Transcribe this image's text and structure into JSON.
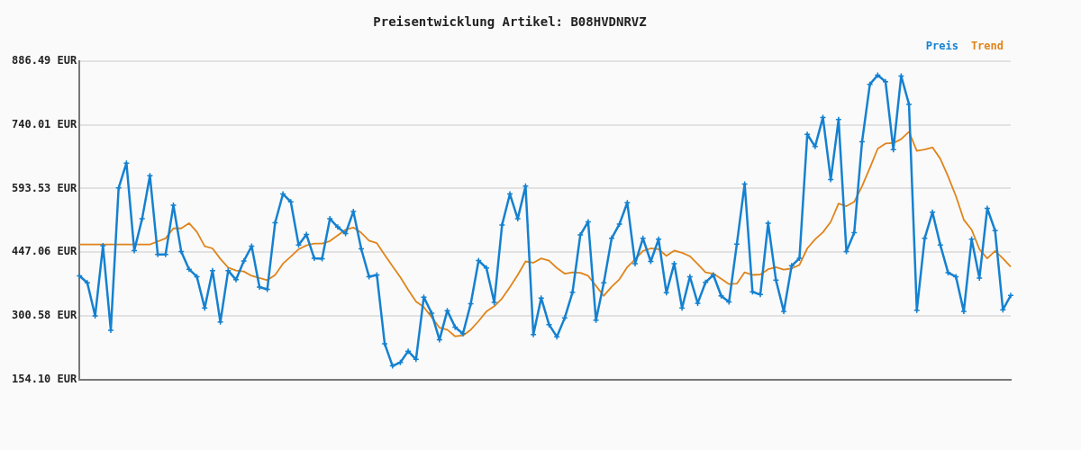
{
  "chart_data": {
    "type": "line",
    "title": "Preisentwicklung Artikel: B08HVDNRVZ",
    "categories": [
      null,
      null,
      null,
      null,
      null,
      null,
      null,
      null,
      null,
      null,
      null,
      null,
      null,
      null,
      null,
      null,
      null,
      null,
      null,
      null,
      null,
      null,
      null,
      null,
      null,
      null,
      null,
      null,
      null,
      null,
      null,
      null,
      null,
      null,
      null,
      null,
      null,
      null,
      null,
      null,
      null,
      null,
      null,
      null,
      null,
      null,
      null,
      null,
      null,
      null,
      null,
      null,
      null,
      null,
      null,
      null,
      null,
      null,
      null,
      null,
      null,
      null,
      null,
      null,
      null,
      null,
      null,
      null,
      null,
      null,
      null,
      null,
      null,
      null,
      null,
      null,
      null,
      null,
      null,
      null,
      null,
      null,
      null,
      null,
      null,
      null,
      null,
      null,
      null,
      null,
      null,
      null,
      null,
      null,
      null,
      null,
      null,
      null,
      null,
      null,
      null,
      null,
      null,
      null,
      null,
      null,
      null,
      null,
      null,
      null,
      null,
      null,
      null,
      null,
      null,
      null,
      null,
      null,
      null,
      null
    ],
    "series": [
      {
        "name": "Preis",
        "color": "#1581d0",
        "values": [
          393,
          377,
          301,
          462,
          268,
          595,
          652,
          451,
          524,
          623,
          442,
          442,
          555,
          449,
          408,
          391,
          319,
          405,
          287,
          405,
          384,
          427,
          461,
          367,
          362,
          515,
          581,
          563,
          464,
          488,
          433,
          432,
          524,
          505,
          490,
          541,
          455,
          391,
          395,
          237,
          186,
          194,
          220,
          201,
          344,
          307,
          246,
          313,
          275,
          260,
          329,
          428,
          411,
          332,
          510,
          581,
          524,
          599,
          258,
          342,
          281,
          253,
          296,
          355,
          487,
          517,
          291,
          377,
          479,
          512,
          561,
          421,
          479,
          426,
          477,
          354,
          421,
          319,
          391,
          330,
          378,
          395,
          347,
          333,
          466,
          604,
          356,
          350,
          514,
          383,
          311,
          416,
          433,
          718,
          690,
          757,
          614,
          752,
          449,
          492,
          701,
          833,
          854,
          839,
          683,
          852,
          787,
          314,
          479,
          539,
          464,
          400,
          391,
          311,
          477,
          388,
          548,
          497,
          315,
          348
        ]
      },
      {
        "name": "Trend",
        "color": "#e0841a",
        "marker": "none",
        "values": [
          465,
          465,
          465,
          465,
          465,
          465,
          465,
          465,
          465,
          465,
          472,
          479,
          502,
          502,
          514,
          494,
          461,
          456,
          432,
          412,
          405,
          403,
          393,
          388,
          383,
          395,
          421,
          437,
          454,
          463,
          467,
          467,
          473,
          486,
          499,
          504,
          492,
          474,
          468,
          441,
          415,
          390,
          361,
          334,
          321,
          298,
          274,
          269,
          254,
          256,
          269,
          289,
          311,
          323,
          341,
          367,
          395,
          426,
          423,
          433,
          428,
          411,
          398,
          401,
          400,
          393,
          370,
          347,
          368,
          385,
          413,
          431,
          450,
          456,
          454,
          439,
          451,
          446,
          438,
          420,
          401,
          398,
          386,
          374,
          375,
          401,
          395,
          396,
          408,
          413,
          407,
          410,
          418,
          456,
          477,
          493,
          517,
          559,
          553,
          563,
          599,
          641,
          685,
          697,
          698,
          707,
          724,
          680,
          683,
          688,
          662,
          621,
          576,
          522,
          499,
          454,
          433,
          450,
          433,
          414
        ]
      }
    ],
    "ylim": [
      154.1,
      886.49
    ],
    "yticks": [
      {
        "value": 154.1,
        "label": "154.10 EUR"
      },
      {
        "value": 300.58,
        "label": "300.58 EUR"
      },
      {
        "value": 447.06,
        "label": "447.06 EUR"
      },
      {
        "value": 593.53,
        "label": "593.53 EUR"
      },
      {
        "value": 740.01,
        "label": "740.01 EUR"
      },
      {
        "value": 886.49,
        "label": "886.49 EUR"
      }
    ],
    "grid": "y",
    "legend": "top right",
    "tick_labels": "y",
    "marker": "cross",
    "line_style": "solid"
  }
}
